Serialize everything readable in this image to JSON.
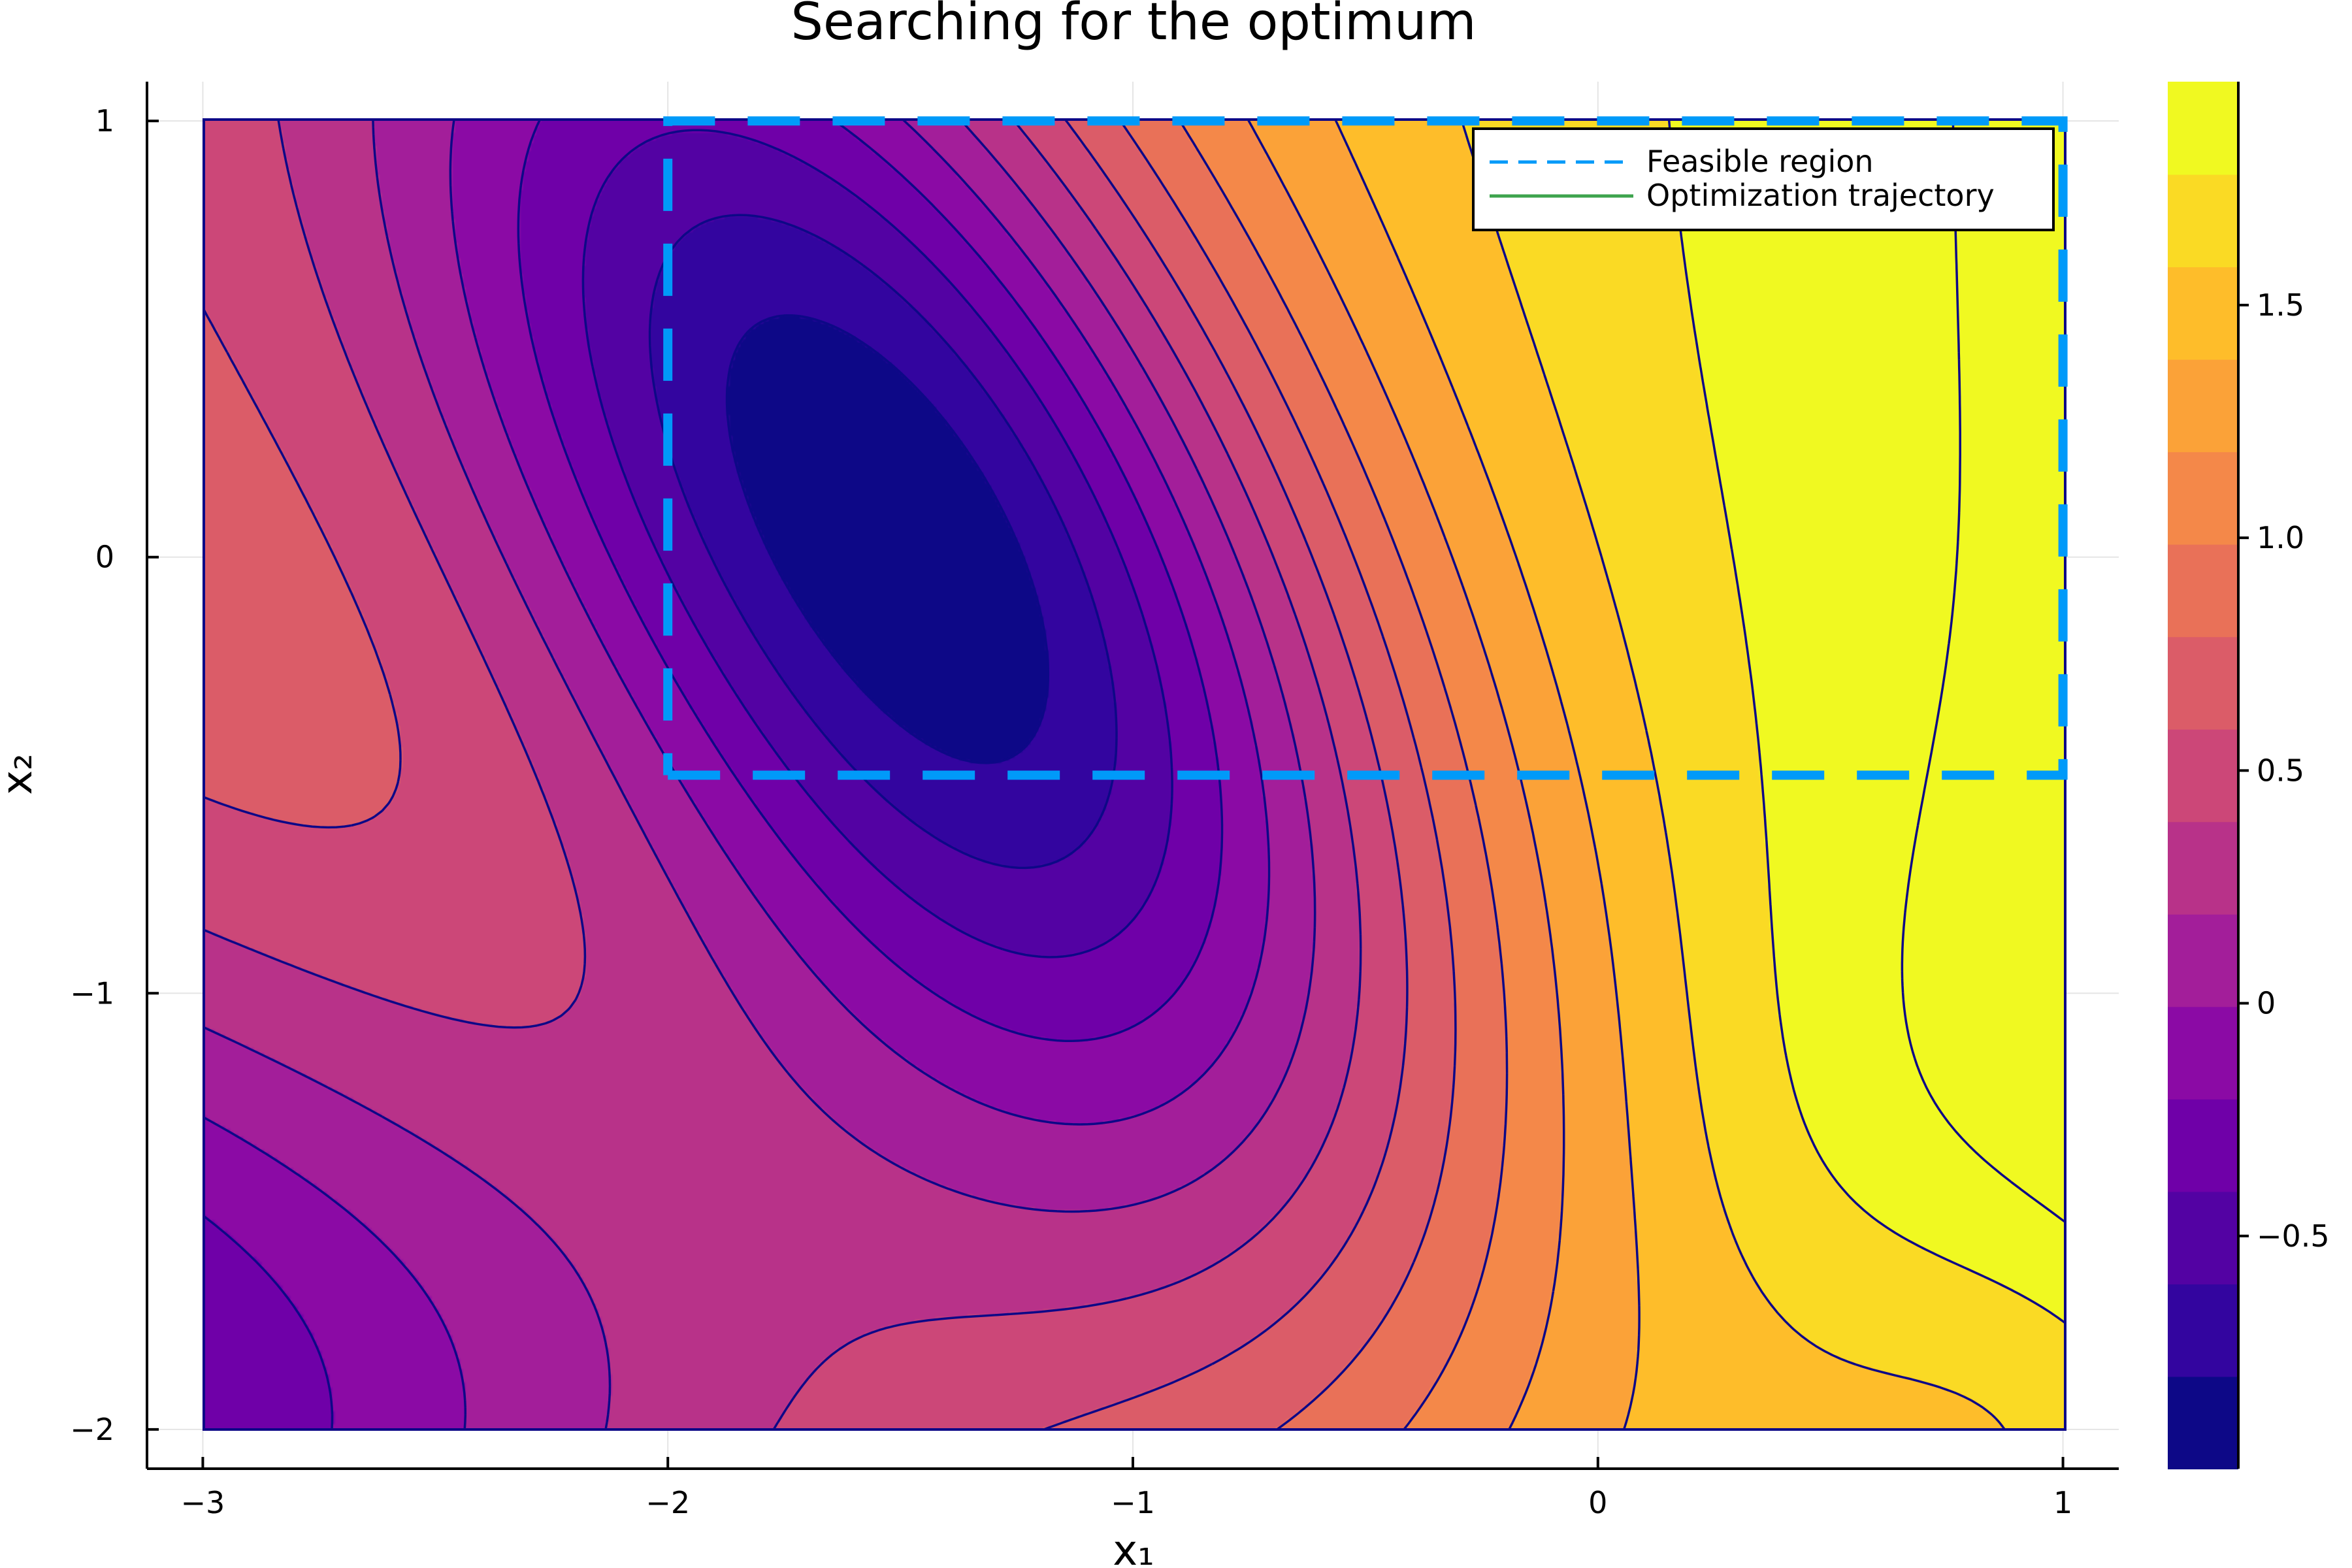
{
  "chart_data": {
    "type": "contour",
    "title": "Searching for the optimum",
    "xlabel": "x₁",
    "ylabel": "x₂",
    "xlim": [
      -3.12,
      1.12
    ],
    "ylim": [
      -2.09,
      1.09
    ],
    "data_extent": {
      "x": [
        -3,
        1
      ],
      "y": [
        -2,
        1
      ]
    },
    "x_ticks": [
      -3,
      -2,
      -1,
      0,
      1
    ],
    "x_tick_labels": [
      "−3",
      "−2",
      "−1",
      "0",
      "1"
    ],
    "y_ticks": [
      -2,
      -1,
      0,
      1
    ],
    "y_tick_labels": [
      "−2",
      "−1",
      "0",
      "1"
    ],
    "grid": true,
    "colormap": "plasma",
    "z_range": [
      -1.0,
      1.98
    ],
    "contour_levels": [
      -1.0,
      -0.8135,
      -0.627,
      -0.4405,
      -0.254,
      -0.0675,
      0.119,
      0.3055,
      0.492,
      0.6785,
      0.865,
      1.0515,
      1.238,
      1.4245,
      1.611,
      1.7975,
      1.98
    ],
    "contour_line_color": "#0d0887",
    "colorbar": {
      "ticks": [
        -0.5,
        0,
        0.5,
        1.0,
        1.5
      ],
      "tick_labels": [
        "−0.5",
        "0",
        "0.5",
        "1.0",
        "1.5"
      ],
      "colors": [
        "#0d0887",
        "#33059f",
        "#5302a3",
        "#6f00a8",
        "#8b0aa5",
        "#a31e9a",
        "#b83289",
        "#cc4778",
        "#db5c68",
        "#e97158",
        "#f48849",
        "#fba238",
        "#febd2a",
        "#fada24",
        "#f0f921"
      ]
    },
    "series": [
      {
        "name": "Feasible region",
        "style": "dashed",
        "color": "#009af9",
        "x": [
          -2,
          1,
          1,
          -2,
          -2
        ],
        "y": [
          -0.5,
          -0.5,
          1,
          1,
          -0.5
        ]
      },
      {
        "name": "Optimization trajectory",
        "style": "solid",
        "color": "#3da44d",
        "x": [],
        "y": []
      }
    ],
    "legend_position": "top-right"
  }
}
